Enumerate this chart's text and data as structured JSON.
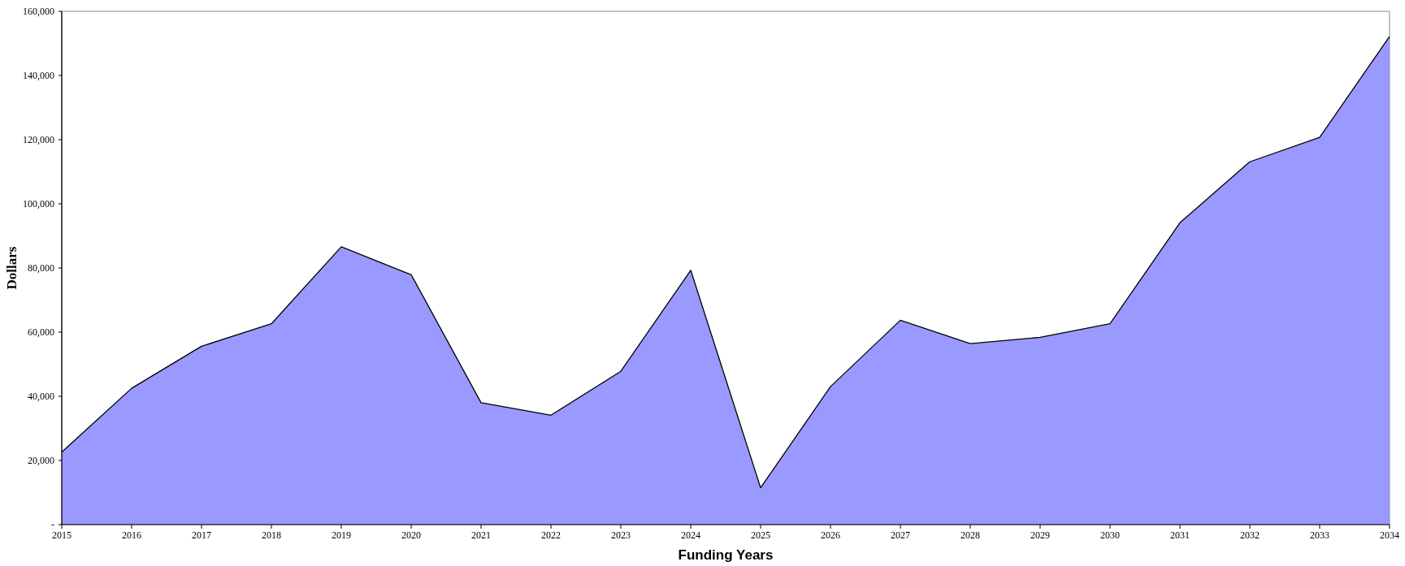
{
  "chart_data": {
    "type": "area",
    "xlabel": "Funding Years",
    "ylabel": "Dollars",
    "categories": [
      "2015",
      "2016",
      "2017",
      "2018",
      "2019",
      "2020",
      "2021",
      "2022",
      "2023",
      "2024",
      "2025",
      "2026",
      "2027",
      "2028",
      "2029",
      "2030",
      "2031",
      "2032",
      "2033",
      "2034"
    ],
    "series": [
      {
        "color": "#9999ff",
        "values": [
          22600,
          42500,
          55600,
          62600,
          86600,
          77900,
          38000,
          34100,
          47800,
          79300,
          11500,
          43000,
          63700,
          56400,
          58400,
          62600,
          94100,
          113100,
          120700,
          152200
        ]
      }
    ],
    "ylim": [
      0,
      160000
    ],
    "yticks": [
      {
        "value": 0,
        "label": "-"
      },
      {
        "value": 20000,
        "label": "20,000"
      },
      {
        "value": 40000,
        "label": "40,000"
      },
      {
        "value": 60000,
        "label": "60,000"
      },
      {
        "value": 80000,
        "label": "80,000"
      },
      {
        "value": 100000,
        "label": "100,000"
      },
      {
        "value": 120000,
        "label": "120,000"
      },
      {
        "value": 140000,
        "label": "140,000"
      },
      {
        "value": 160000,
        "label": "160,000"
      }
    ],
    "grid": false
  }
}
